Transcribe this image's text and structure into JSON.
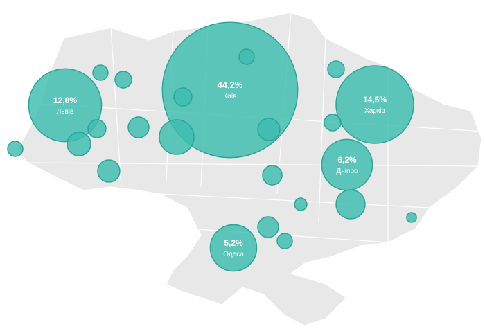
{
  "bubbles": [
    {
      "label": "Київ",
      "value": 44.2,
      "value_label": "44,2%"
    },
    {
      "label": "Львів",
      "value": 12.8,
      "value_label": "12,8%"
    },
    {
      "label": "Харків",
      "value": 14.5,
      "value_label": "14,5%"
    },
    {
      "label": "Дніпро",
      "value": 6.2,
      "value_label": "6,2%"
    },
    {
      "label": "Одеса",
      "value": 5.2,
      "value_label": "5,2%"
    },
    {
      "value": 0.56
    },
    {
      "value": 0.67
    },
    {
      "value": 0.78
    },
    {
      "value": 1.34
    },
    {
      "value": 1.04
    },
    {
      "value": 1.18
    },
    {
      "value": 0.56
    },
    {
      "value": 2.89
    },
    {
      "value": 0.78
    },
    {
      "value": 0.56
    },
    {
      "value": 1.18
    },
    {
      "value": 0.91
    },
    {
      "value": 0.67
    },
    {
      "value": 0.67
    },
    {
      "value": 2.04
    },
    {
      "value": 0.37
    },
    {
      "value": 1.04
    },
    {
      "value": 0.56
    },
    {
      "value": 0.23
    }
  ]
}
